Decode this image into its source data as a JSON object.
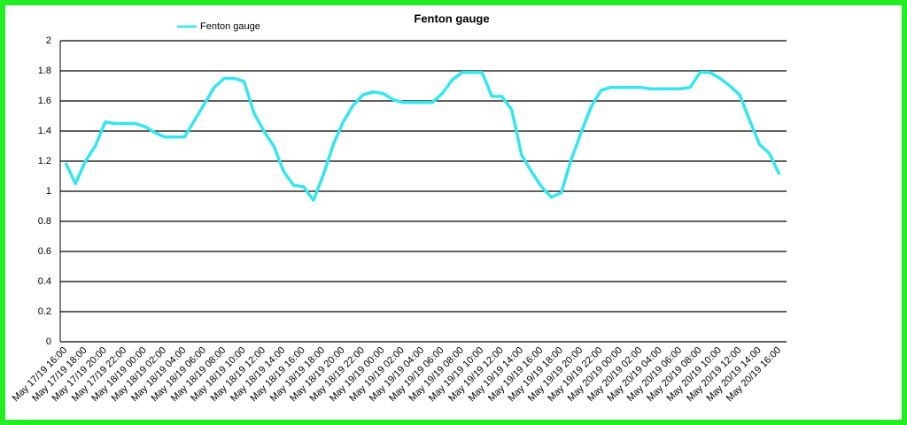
{
  "chart_data": {
    "type": "line",
    "title": "Fenton gauge",
    "categories": [
      "May 17/19 16:00",
      null,
      "May 17/19 18:00",
      null,
      "May 17/19 20:00",
      null,
      "May 17/19 22:00",
      null,
      "May 18/19 00:00",
      null,
      "May 18/19 02:00",
      null,
      "May 18/19 04:00",
      null,
      "May 18/19 06:00",
      null,
      "May 18/19 08:00",
      null,
      "May 18/19 10:00",
      null,
      "May 18/19 12:00",
      null,
      "May 18/19 14:00",
      null,
      "May 18/19 16:00",
      null,
      "May 18/19 18:00",
      null,
      "May 18/19 20:00",
      null,
      "May 18/19 22:00",
      null,
      "May 19/19 00:00",
      null,
      "May 19/19 02:00",
      null,
      "May 19/19 04:00",
      null,
      "May 19/19 06:00",
      null,
      "May 19/19 08:00",
      null,
      "May 19/19 10:00",
      null,
      "May 19/19 12:00",
      null,
      "May 19/19 14:00",
      null,
      "May 19/19 16:00",
      null,
      "May 19/19 18:00",
      null,
      "May 19/19 20:00",
      null,
      "May 19/19 22:00",
      null,
      "May 20/19 00:00",
      null,
      "May 20/19 02:00",
      null,
      "May 20/19 04:00",
      null,
      "May 20/19 06:00",
      null,
      "May 20/19 08:00",
      null,
      "May 20/19 10:00",
      null,
      "May 20/19 12:00",
      null,
      "May 20/19 14:00",
      null,
      "May 20/19 16:00"
    ],
    "series": [
      {
        "name": "Fenton gauge",
        "color": "#33e6f0",
        "values": [
          1.19,
          1.05,
          1.2,
          1.3,
          1.46,
          1.45,
          1.45,
          1.45,
          1.43,
          1.39,
          1.36,
          1.36,
          1.36,
          1.47,
          1.58,
          1.69,
          1.75,
          1.75,
          1.73,
          1.52,
          1.4,
          1.3,
          1.13,
          1.04,
          1.03,
          0.94,
          1.11,
          1.31,
          1.46,
          1.57,
          1.64,
          1.66,
          1.65,
          1.61,
          1.59,
          1.59,
          1.59,
          1.59,
          1.65,
          1.74,
          1.79,
          1.79,
          1.79,
          1.63,
          1.63,
          1.54,
          1.24,
          1.13,
          1.03,
          0.96,
          0.99,
          1.21,
          1.39,
          1.56,
          1.67,
          1.69,
          1.69,
          1.69,
          1.69,
          1.68,
          1.68,
          1.68,
          1.68,
          1.69,
          1.79,
          1.79,
          1.75,
          1.7,
          1.64,
          1.47,
          1.31,
          1.25,
          1.11
        ]
      }
    ],
    "ylim": [
      0,
      2
    ],
    "yticks": [
      0,
      0.2,
      0.4,
      0.6,
      0.8,
      1,
      1.2,
      1.4,
      1.6,
      1.8,
      2
    ],
    "grid": true,
    "legend": "top-left"
  }
}
